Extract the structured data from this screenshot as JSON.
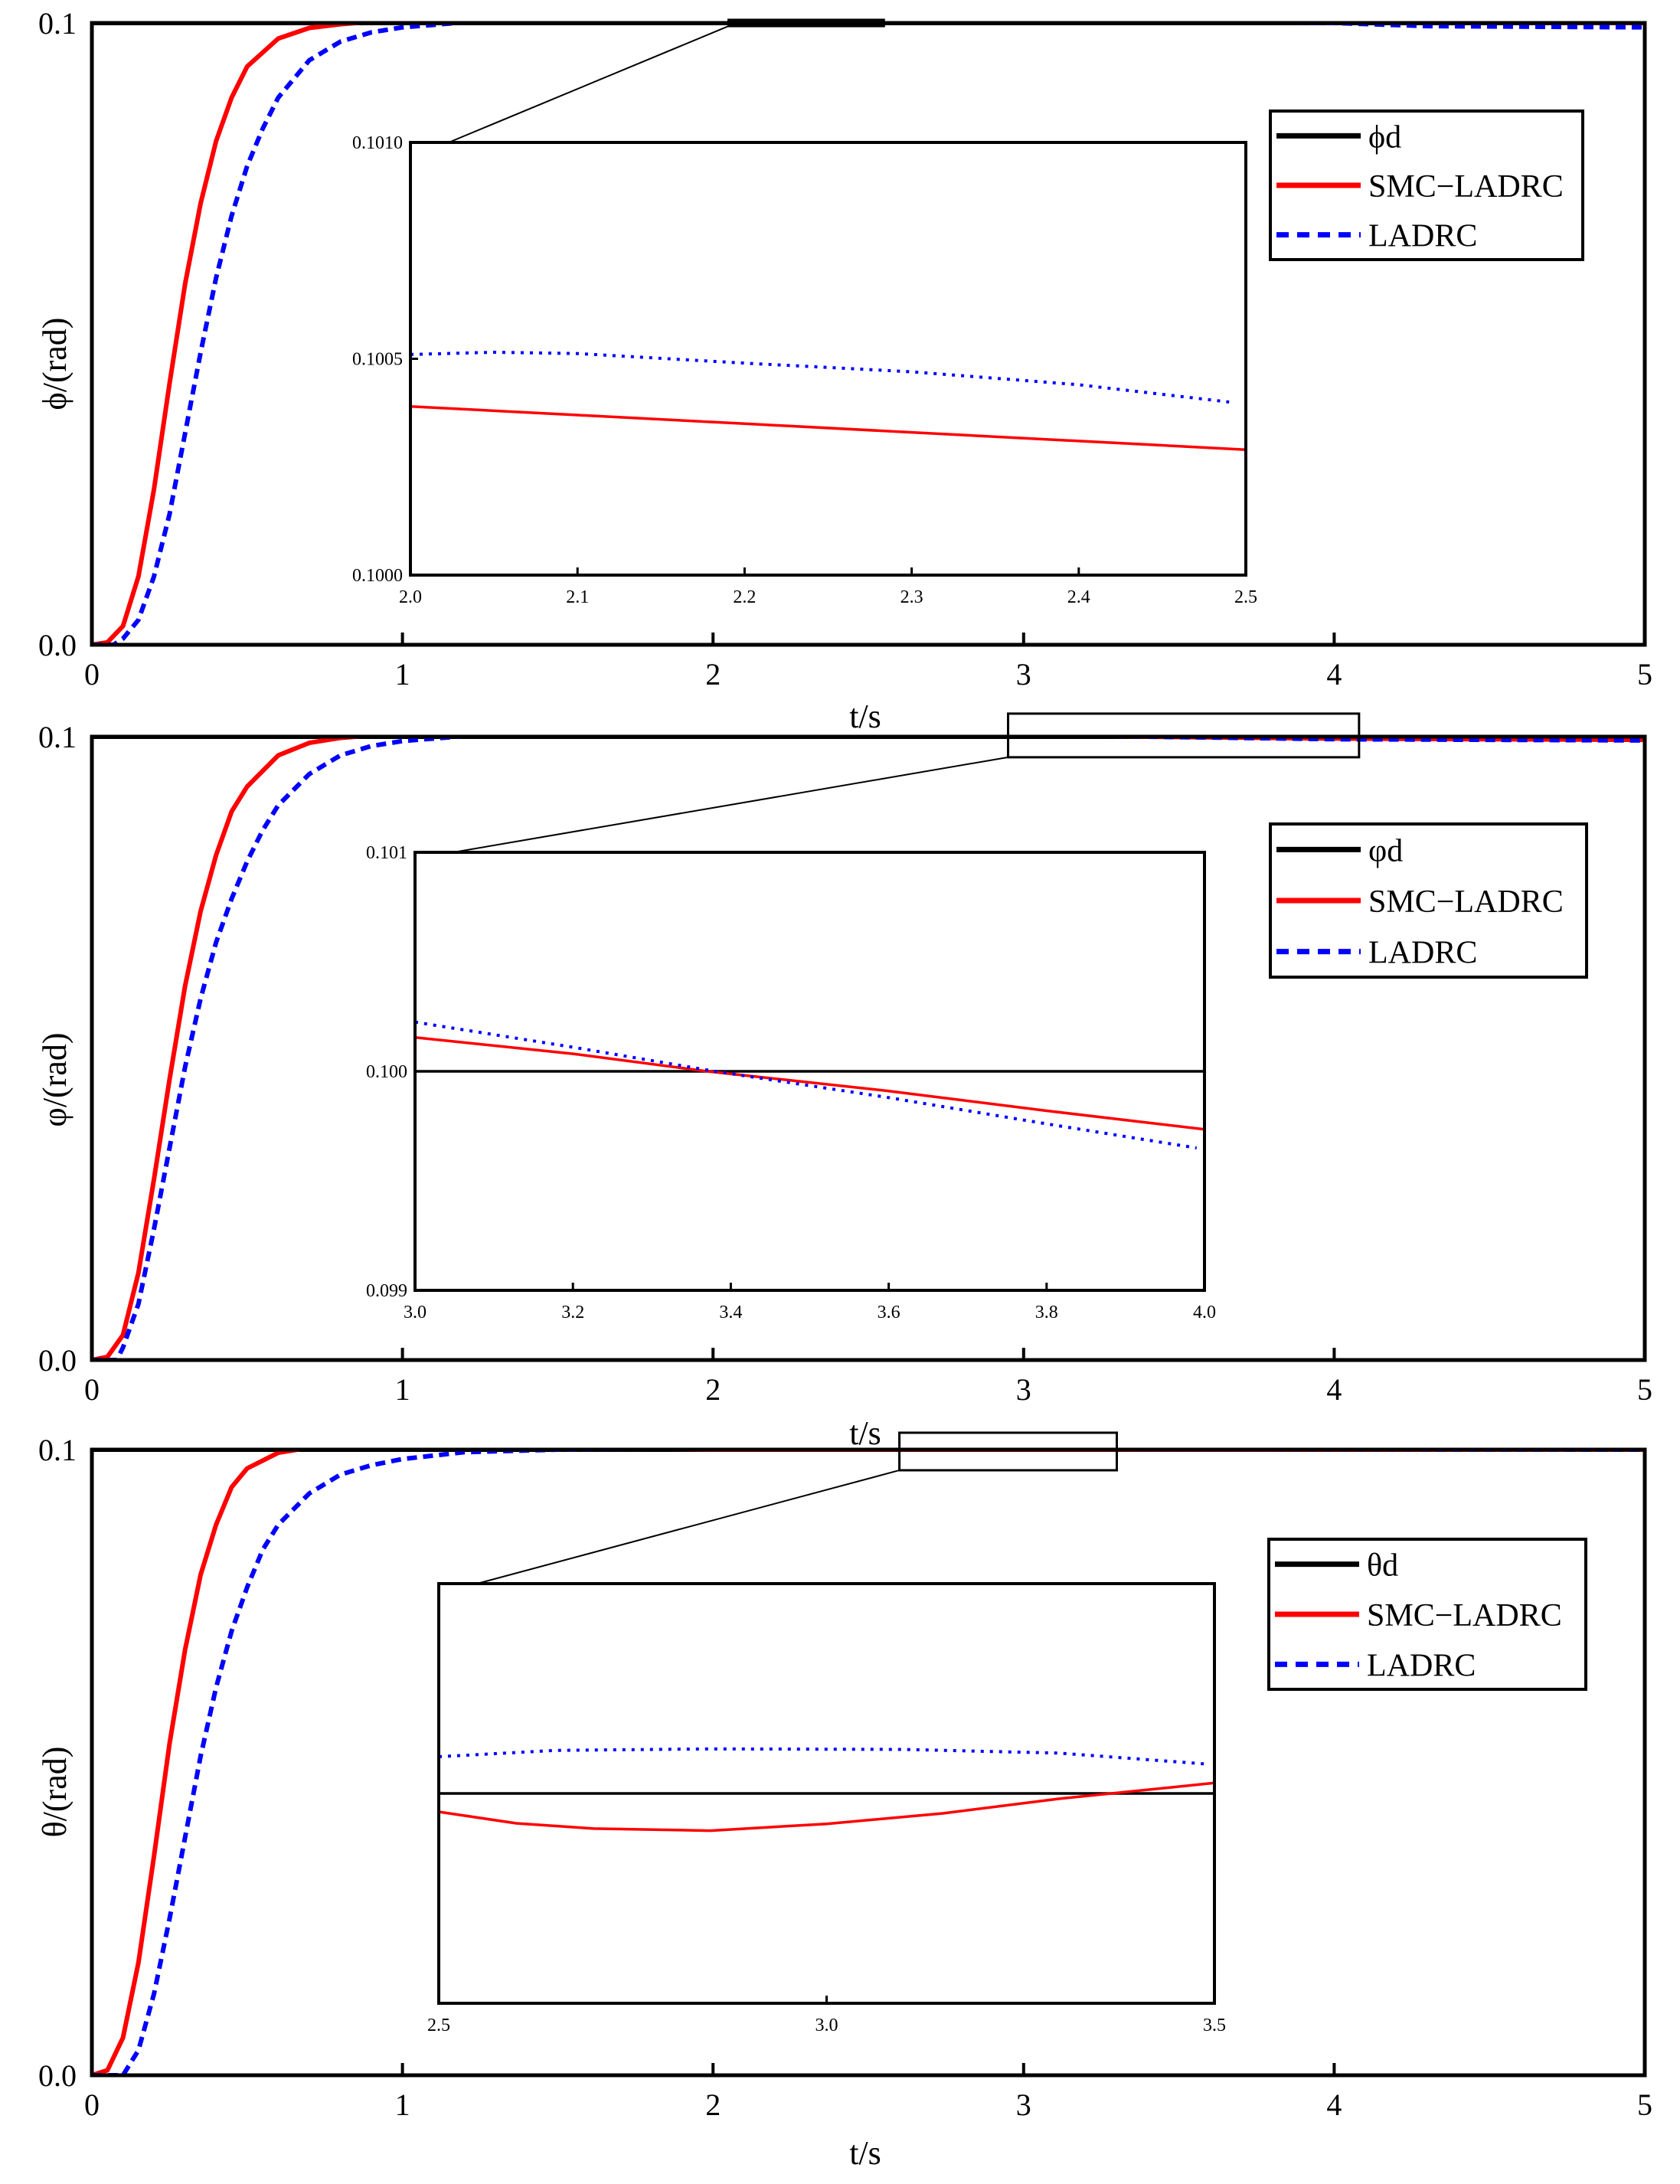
{
  "figure": {
    "colors": {
      "reference": "#000000",
      "smc_ladrc": "#ff0000",
      "ladrc": "#0000ff"
    }
  },
  "chart_data": [
    {
      "type": "line",
      "id": "phi",
      "ylabel": "ϕ/(rad)",
      "xlabel": "t/s",
      "xlim": [
        0,
        5
      ],
      "ylim": [
        0,
        0.1
      ],
      "xticks": [
        "0",
        "1",
        "2",
        "3",
        "4",
        "5"
      ],
      "yticks": [
        "0.0",
        "0.1"
      ],
      "legend": [
        "ϕd",
        "SMC−LADRC",
        "LADRC"
      ],
      "series": [
        {
          "name": "ϕd",
          "style": "solid",
          "points": [
            [
              0,
              0.1
            ],
            [
              5,
              0.1
            ]
          ]
        },
        {
          "name": "SMC−LADRC",
          "style": "solid",
          "points": [
            [
              0,
              0
            ],
            [
              0.05,
              0.0004
            ],
            [
              0.1,
              0.003
            ],
            [
              0.15,
              0.011
            ],
            [
              0.2,
              0.025
            ],
            [
              0.25,
              0.042
            ],
            [
              0.3,
              0.058
            ],
            [
              0.35,
              0.071
            ],
            [
              0.4,
              0.081
            ],
            [
              0.45,
              0.088
            ],
            [
              0.5,
              0.093
            ],
            [
              0.6,
              0.0975
            ],
            [
              0.7,
              0.0992
            ],
            [
              0.8,
              0.0998
            ],
            [
              0.9,
              0.1002
            ],
            [
              1.0,
              0.1004
            ],
            [
              1.5,
              0.1004
            ],
            [
              2.0,
              0.1004
            ],
            [
              2.5,
              0.1003
            ],
            [
              3.0,
              0.1002
            ],
            [
              4.0,
              0.1001
            ],
            [
              5.0,
              0.1
            ]
          ]
        },
        {
          "name": "LADRC",
          "style": "dashed",
          "points": [
            [
              0,
              0
            ],
            [
              0.07,
              0
            ],
            [
              0.1,
              0.001
            ],
            [
              0.15,
              0.004
            ],
            [
              0.2,
              0.011
            ],
            [
              0.25,
              0.021
            ],
            [
              0.3,
              0.034
            ],
            [
              0.35,
              0.047
            ],
            [
              0.4,
              0.059
            ],
            [
              0.45,
              0.069
            ],
            [
              0.5,
              0.077
            ],
            [
              0.55,
              0.083
            ],
            [
              0.6,
              0.088
            ],
            [
              0.7,
              0.094
            ],
            [
              0.8,
              0.097
            ],
            [
              0.9,
              0.0985
            ],
            [
              1.0,
              0.0993
            ],
            [
              1.2,
              0.1001
            ],
            [
              1.5,
              0.1004
            ],
            [
              2.0,
              0.1005
            ],
            [
              2.5,
              0.1004
            ],
            [
              3.0,
              0.1003
            ],
            [
              4.0,
              0.1
            ],
            [
              4.3,
              0.0995
            ],
            [
              5.0,
              0.0993
            ]
          ]
        }
      ],
      "zoom_box": {
        "xlim": [
          2.05,
          2.55
        ],
        "ylim": [
          0.0995,
          0.1005
        ]
      },
      "inset": {
        "xlim": [
          2.0,
          2.5
        ],
        "ylim": [
          0.1,
          0.101
        ],
        "xticks": [
          "2.0",
          "2.1",
          "2.2",
          "2.3",
          "2.4",
          "2.5"
        ],
        "yticks": [
          "0.1000",
          "0.1005",
          "0.1010"
        ],
        "series": [
          {
            "name": "SMC−LADRC",
            "style": "solid",
            "points": [
              [
                2.0,
                0.10039
              ],
              [
                2.1,
                0.10037
              ],
              [
                2.2,
                0.10035
              ],
              [
                2.3,
                0.10033
              ],
              [
                2.4,
                0.10031
              ],
              [
                2.5,
                0.10029
              ]
            ]
          },
          {
            "name": "LADRC",
            "style": "dotted",
            "points": [
              [
                2.0,
                0.10051
              ],
              [
                2.05,
                0.100515
              ],
              [
                2.1,
                0.100512
              ],
              [
                2.2,
                0.10049
              ],
              [
                2.3,
                0.10047
              ],
              [
                2.4,
                0.10044
              ],
              [
                2.49,
                0.1004
              ]
            ]
          }
        ]
      }
    },
    {
      "type": "line",
      "id": "varphi",
      "ylabel": "φ/(rad)",
      "xlabel": "t/s",
      "xlim": [
        0,
        5
      ],
      "ylim": [
        0,
        0.1
      ],
      "xticks": [
        "0",
        "1",
        "2",
        "3",
        "4",
        "5"
      ],
      "yticks": [
        "0.0",
        "0.1"
      ],
      "legend": [
        "φd",
        "SMC−LADRC",
        "LADRC"
      ],
      "series": [
        {
          "name": "φd",
          "style": "solid",
          "points": [
            [
              0,
              0.1
            ],
            [
              5,
              0.1
            ]
          ]
        },
        {
          "name": "SMC−LADRC",
          "style": "solid",
          "points": [
            [
              0,
              0
            ],
            [
              0.05,
              0.0005
            ],
            [
              0.1,
              0.004
            ],
            [
              0.15,
              0.014
            ],
            [
              0.2,
              0.029
            ],
            [
              0.25,
              0.045
            ],
            [
              0.3,
              0.06
            ],
            [
              0.35,
              0.072
            ],
            [
              0.4,
              0.081
            ],
            [
              0.45,
              0.088
            ],
            [
              0.5,
              0.092
            ],
            [
              0.6,
              0.097
            ],
            [
              0.7,
              0.099
            ],
            [
              0.8,
              0.0998
            ],
            [
              0.9,
              0.1002
            ],
            [
              1.0,
              0.1003
            ],
            [
              2.0,
              0.1003
            ],
            [
              3.0,
              0.1002
            ],
            [
              3.4,
              0.1
            ],
            [
              4.0,
              0.0997
            ],
            [
              5.0,
              0.0995
            ]
          ]
        },
        {
          "name": "LADRC",
          "style": "dashed",
          "points": [
            [
              0,
              0
            ],
            [
              0.08,
              0
            ],
            [
              0.1,
              0.002
            ],
            [
              0.15,
              0.009
            ],
            [
              0.2,
              0.021
            ],
            [
              0.25,
              0.034
            ],
            [
              0.3,
              0.047
            ],
            [
              0.35,
              0.058
            ],
            [
              0.4,
              0.067
            ],
            [
              0.45,
              0.074
            ],
            [
              0.5,
              0.08
            ],
            [
              0.55,
              0.085
            ],
            [
              0.6,
              0.089
            ],
            [
              0.7,
              0.094
            ],
            [
              0.8,
              0.097
            ],
            [
              0.9,
              0.0985
            ],
            [
              1.0,
              0.0993
            ],
            [
              1.2,
              0.1001
            ],
            [
              1.5,
              0.1003
            ],
            [
              2.0,
              0.1003
            ],
            [
              3.0,
              0.1002
            ],
            [
              3.4,
              0.1
            ],
            [
              4.0,
              0.0996
            ],
            [
              5.0,
              0.0994
            ]
          ]
        }
      ],
      "zoom_box": {
        "xlim": [
          2.95,
          4.08
        ],
        "ylim": [
          0.0967,
          0.1037
        ]
      },
      "inset": {
        "xlim": [
          3.0,
          4.0
        ],
        "ylim": [
          0.099,
          0.101
        ],
        "xticks": [
          "3.0",
          "3.2",
          "3.4",
          "3.6",
          "3.8",
          "4.0"
        ],
        "yticks": [
          "0.099",
          "0.100",
          "0.101"
        ],
        "series": [
          {
            "name": "φd",
            "style": "solid",
            "points": [
              [
                3.0,
                0.1
              ],
              [
                4.0,
                0.1
              ]
            ]
          },
          {
            "name": "SMC−LADRC",
            "style": "solid",
            "points": [
              [
                3.0,
                0.100155
              ],
              [
                3.2,
                0.10008
              ],
              [
                3.37,
                0.1
              ],
              [
                3.6,
                0.09991
              ],
              [
                3.8,
                0.09982
              ],
              [
                4.0,
                0.099735
              ]
            ]
          },
          {
            "name": "LADRC",
            "style": "dotted",
            "points": [
              [
                3.0,
                0.100225
              ],
              [
                3.2,
                0.10011
              ],
              [
                3.38,
                0.1
              ],
              [
                3.6,
                0.09988
              ],
              [
                3.8,
                0.09976
              ],
              [
                3.99,
                0.09965
              ]
            ]
          }
        ]
      }
    },
    {
      "type": "line",
      "id": "theta",
      "ylabel": "θ/(rad)",
      "xlabel": "t/s",
      "xlim": [
        0,
        5
      ],
      "ylim": [
        0,
        0.1
      ],
      "xticks": [
        "0",
        "1",
        "2",
        "3",
        "4",
        "5"
      ],
      "yticks": [
        "0.0",
        "0.1"
      ],
      "legend": [
        "θd",
        "SMC−LADRC",
        "LADRC"
      ],
      "series": [
        {
          "name": "θd",
          "style": "solid",
          "points": [
            [
              0,
              0.1
            ],
            [
              5,
              0.1
            ]
          ]
        },
        {
          "name": "SMC−LADRC",
          "style": "solid",
          "points": [
            [
              0,
              0
            ],
            [
              0.05,
              0.0008
            ],
            [
              0.1,
              0.006
            ],
            [
              0.15,
              0.018
            ],
            [
              0.2,
              0.035
            ],
            [
              0.25,
              0.053
            ],
            [
              0.3,
              0.068
            ],
            [
              0.35,
              0.08
            ],
            [
              0.4,
              0.088
            ],
            [
              0.45,
              0.094
            ],
            [
              0.5,
              0.097
            ],
            [
              0.6,
              0.0995
            ],
            [
              0.7,
              0.1003
            ],
            [
              0.8,
              0.1005
            ],
            [
              1.0,
              0.1004
            ],
            [
              1.5,
              0.1002
            ],
            [
              2.0,
              0.1
            ],
            [
              5.0,
              0.1
            ]
          ]
        },
        {
          "name": "LADRC",
          "style": "dashed",
          "points": [
            [
              0,
              0
            ],
            [
              0.1,
              0
            ],
            [
              0.15,
              0.004
            ],
            [
              0.2,
              0.013
            ],
            [
              0.25,
              0.025
            ],
            [
              0.3,
              0.038
            ],
            [
              0.35,
              0.051
            ],
            [
              0.4,
              0.062
            ],
            [
              0.45,
              0.071
            ],
            [
              0.5,
              0.078
            ],
            [
              0.55,
              0.084
            ],
            [
              0.6,
              0.088
            ],
            [
              0.7,
              0.093
            ],
            [
              0.8,
              0.096
            ],
            [
              0.9,
              0.0975
            ],
            [
              1.0,
              0.0985
            ],
            [
              1.2,
              0.0996
            ],
            [
              1.5,
              0.1
            ],
            [
              2.0,
              0.1001
            ],
            [
              5.0,
              0.1
            ]
          ]
        }
      ],
      "zoom_box": {
        "xlim": [
          2.6,
          3.3
        ],
        "ylim": [
          0.0967,
          0.1027
        ]
      },
      "inset": {
        "xlim": [
          2.5,
          3.5
        ],
        "ylim": [
          0.0996,
          0.1004
        ],
        "xticks": [
          "2.5",
          "3.0",
          "3.5"
        ],
        "yticks": [],
        "series": [
          {
            "name": "θd",
            "style": "solid",
            "points": [
              [
                2.5,
                0.1
              ],
              [
                3.5,
                0.1
              ]
            ]
          },
          {
            "name": "SMC−LADRC",
            "style": "solid",
            "points": [
              [
                2.5,
                0.099965
              ],
              [
                2.6,
                0.099943
              ],
              [
                2.7,
                0.099933
              ],
              [
                2.85,
                0.099929
              ],
              [
                3.0,
                0.099942
              ],
              [
                3.15,
                0.099962
              ],
              [
                3.3,
                0.09999
              ],
              [
                3.5,
                0.10002
              ]
            ]
          },
          {
            "name": "LADRC",
            "style": "dotted",
            "points": [
              [
                2.5,
                0.10007
              ],
              [
                2.65,
                0.100082
              ],
              [
                2.85,
                0.100085
              ],
              [
                3.1,
                0.100084
              ],
              [
                3.3,
                0.100077
              ],
              [
                3.49,
                0.100056
              ]
            ]
          }
        ]
      }
    }
  ]
}
